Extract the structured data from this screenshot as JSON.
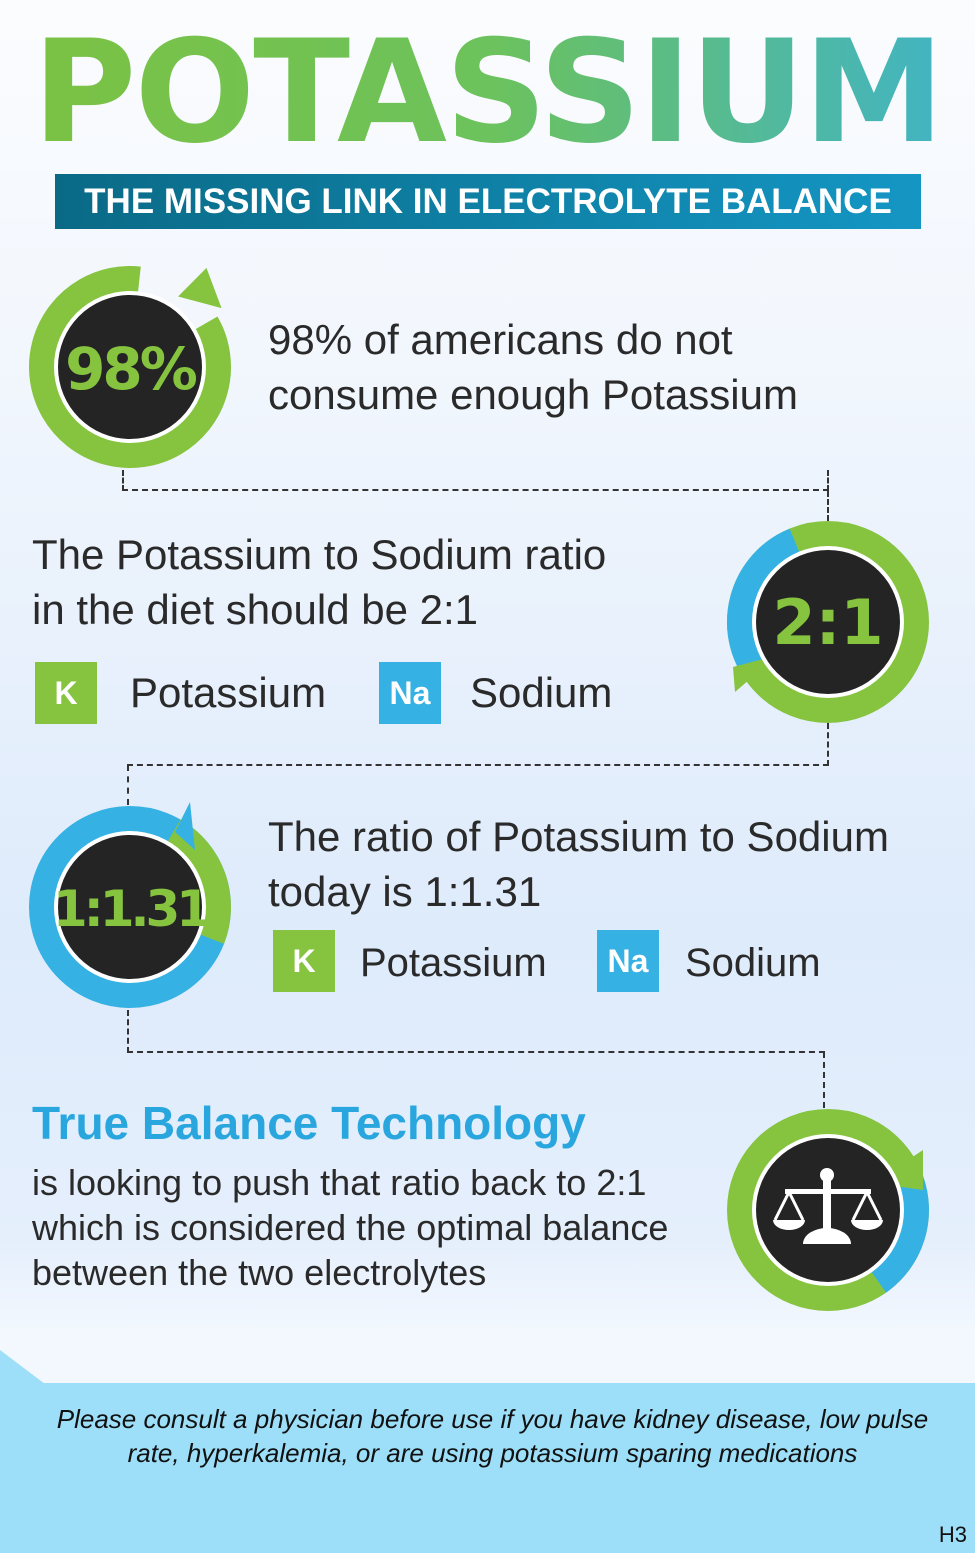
{
  "title": "POTASSIUM",
  "subtitle": "THE MISSING LINK IN ELECTROLYTE BALANCE",
  "stat1": {
    "badge": "98%",
    "line1": "98% of americans do not",
    "line2": "consume enough Potassium"
  },
  "stat2": {
    "badge": "2:1",
    "line1": "The Potassium to Sodium ratio",
    "line2": "in the diet should be 2:1",
    "k_symbol": "K",
    "k_label": "Potassium",
    "na_symbol": "Na",
    "na_label": "Sodium"
  },
  "stat3": {
    "badge": "1:1.31",
    "line1": "The ratio of Potassium to Sodium",
    "line2": "today is 1:1.31",
    "k_symbol": "K",
    "k_label": "Potassium",
    "na_symbol": "Na",
    "na_label": "Sodium"
  },
  "stat4": {
    "icon": "scales-icon",
    "heading": "True Balance Technology",
    "line1": "is looking to push that ratio back to 2:1",
    "line2": "which is considered the optimal balance",
    "line3": "between the two electrolytes"
  },
  "footer": {
    "disclaimer_line1": "Please consult a physician before use if you have kidney disease, low pulse",
    "disclaimer_line2": "rate, hyperkalemia, or are using potassium sparing medications",
    "code": "H3"
  },
  "colors": {
    "green": "#86c440",
    "blue": "#35b1e3",
    "dark": "#242424",
    "navy": "#0a6a86"
  }
}
